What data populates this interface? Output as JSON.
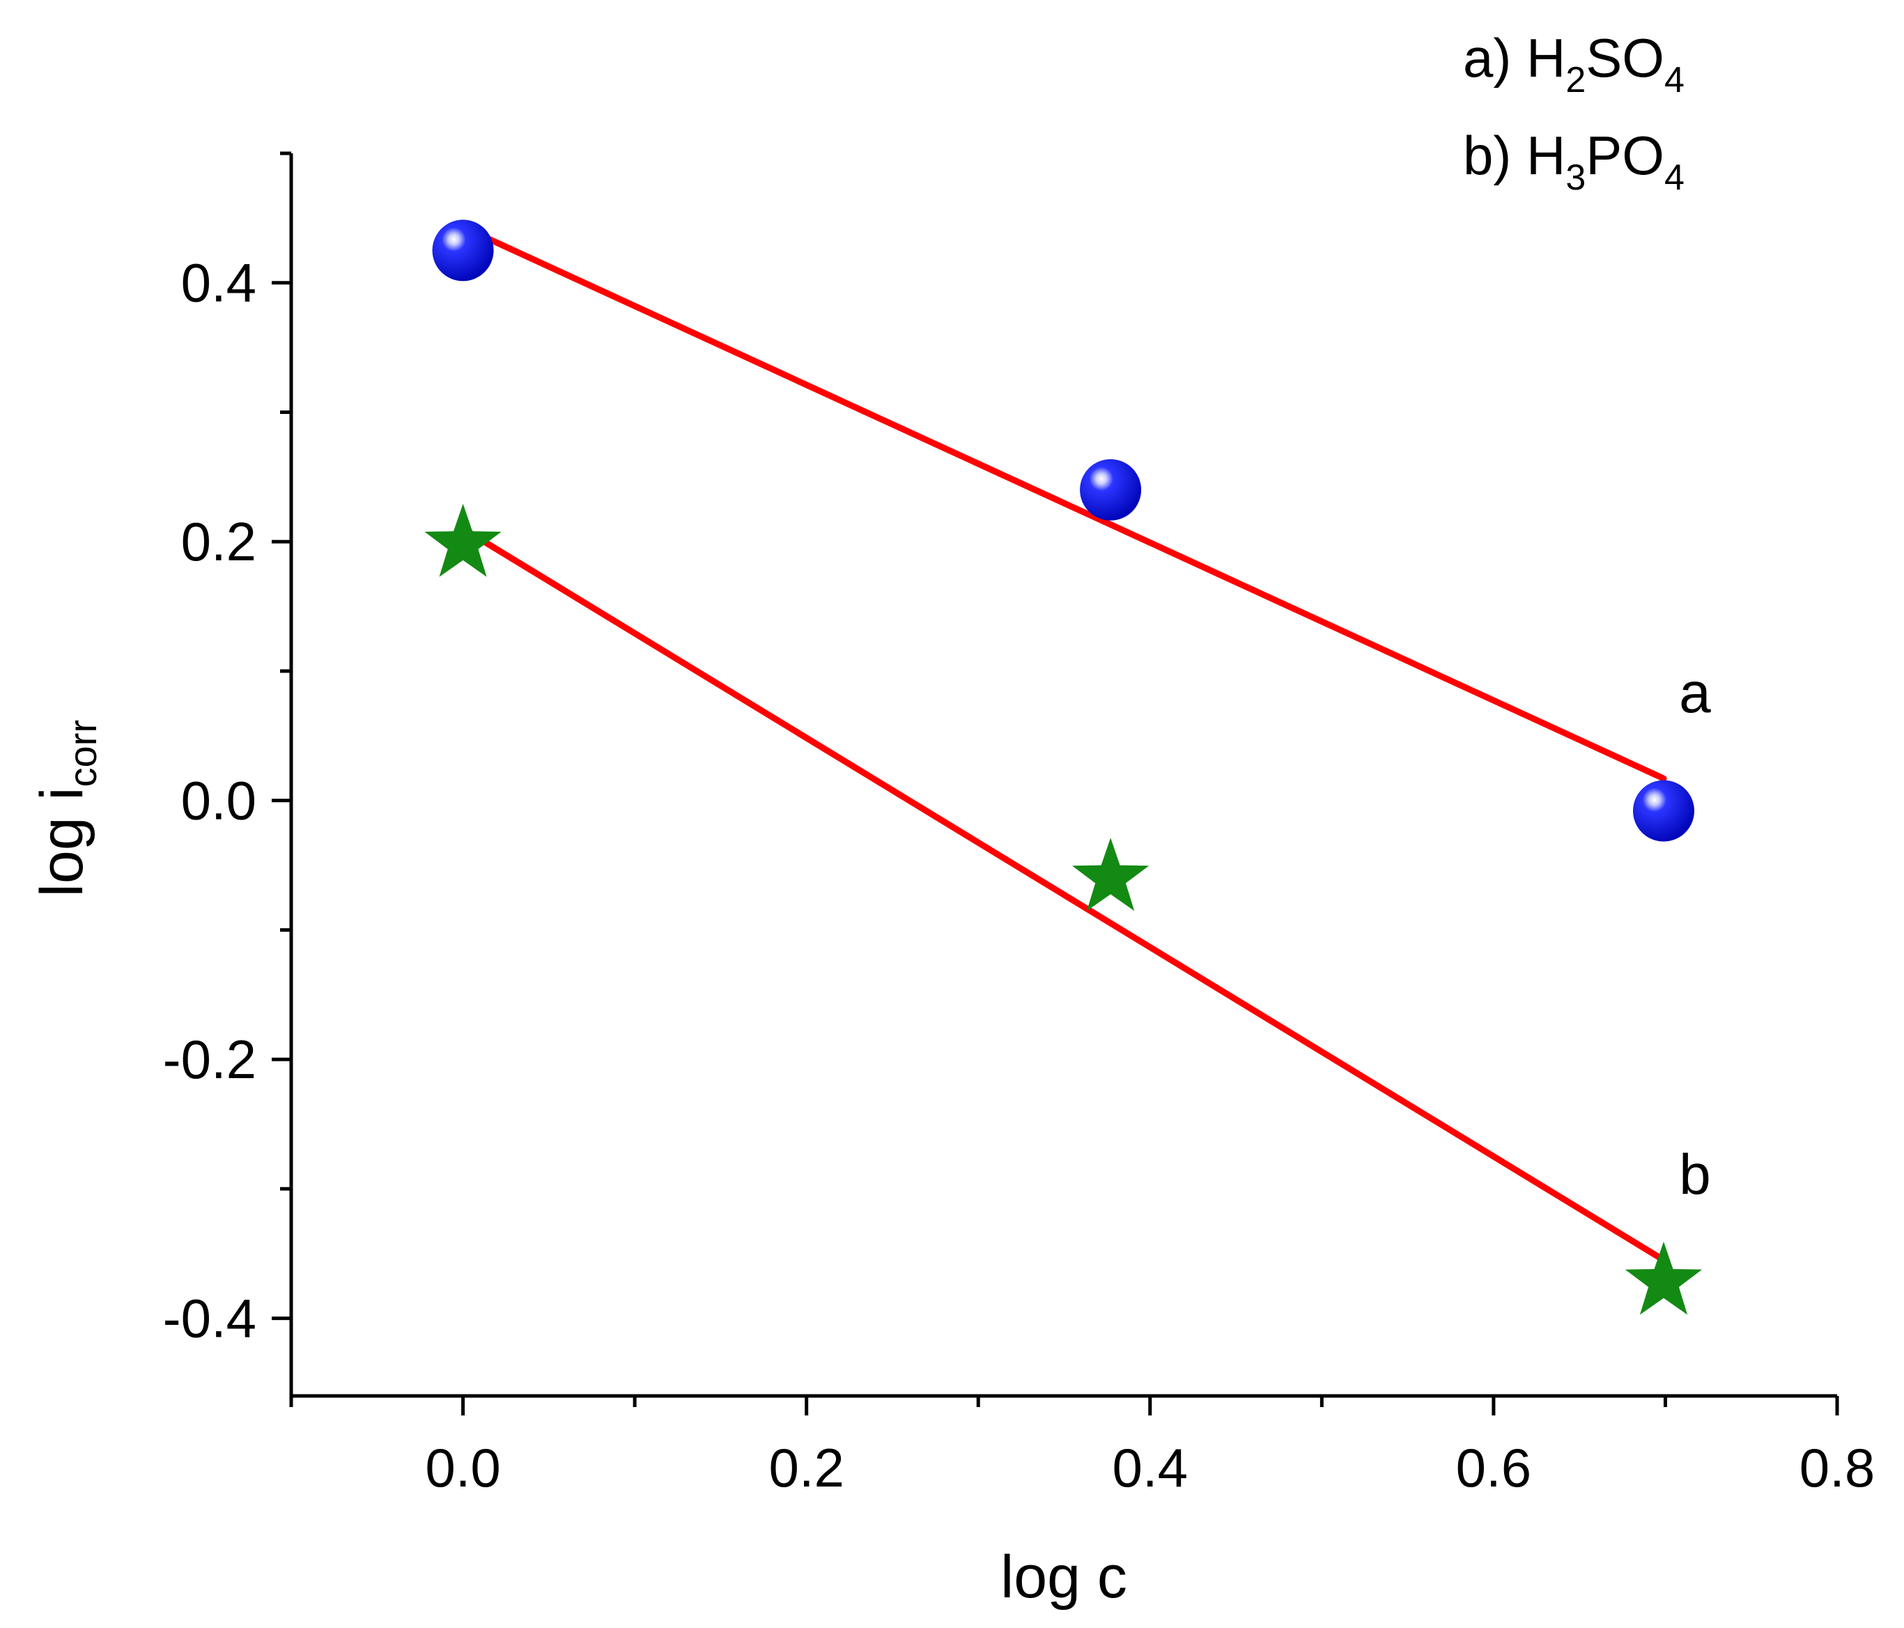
{
  "chart_data": {
    "type": "scatter",
    "xlabel": "log c",
    "ylabel": {
      "main": "log i",
      "sub": "corr"
    },
    "xlim": [
      -0.1,
      0.8
    ],
    "ylim": [
      -0.46,
      0.5
    ],
    "x_ticks": [
      0.0,
      0.2,
      0.4,
      0.6,
      0.8
    ],
    "x_tick_labels": [
      "0.0",
      "0.2",
      "0.4",
      "0.6",
      "0.8"
    ],
    "x_minor_ticks": [
      -0.1,
      0.1,
      0.3,
      0.5,
      0.7
    ],
    "y_ticks": [
      -0.4,
      -0.2,
      0.0,
      0.2,
      0.4
    ],
    "y_tick_labels": [
      "-0.4",
      "-0.2",
      "0.0",
      "0.2",
      "0.4"
    ],
    "y_minor_ticks": [
      -0.3,
      -0.1,
      0.1,
      0.3,
      0.5
    ],
    "grid": false,
    "legend": [
      {
        "prefix": "a) H",
        "sub1": "2",
        "mid": "SO",
        "sub2": "4"
      },
      {
        "prefix": "b) H",
        "sub1": "3",
        "mid": "PO",
        "sub2": "4"
      }
    ],
    "legend_position": "top-right",
    "series": [
      {
        "label": "a",
        "marker": "sphere",
        "color": "#0a14e8",
        "x": [
          0.0,
          0.377,
          0.699
        ],
        "y": [
          0.425,
          0.24,
          -0.008
        ],
        "fit": {
          "color": "#ff0000",
          "x": [
            0.0,
            0.699
          ],
          "y": [
            0.443,
            0.017
          ]
        }
      },
      {
        "label": "b",
        "marker": "star",
        "color": "#138a13",
        "x": [
          0.0,
          0.377,
          0.699
        ],
        "y": [
          0.198,
          -0.06,
          -0.372
        ],
        "fit": {
          "color": "#ff0000",
          "x": [
            0.0,
            0.699
          ],
          "y": [
            0.21,
            -0.355
          ]
        }
      }
    ]
  }
}
